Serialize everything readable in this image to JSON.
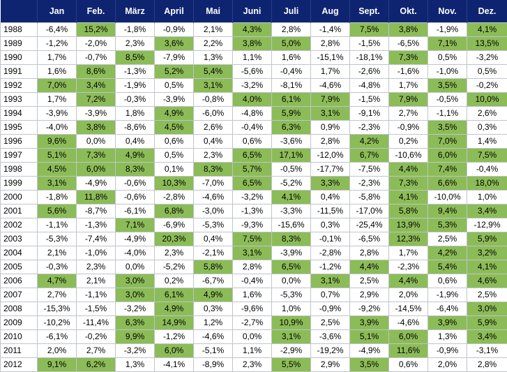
{
  "chart_data": {
    "type": "table",
    "highlight_color": "#8cbc57",
    "header_color": "#0f2471",
    "months": [
      "Jan",
      "Feb.",
      "März",
      "April",
      "Mai",
      "Juni",
      "Juli",
      "Aug",
      "Sept.",
      "Okt.",
      "Nov.",
      "Dez."
    ],
    "rows": [
      {
        "year": "1988",
        "values": [
          "-6,4%",
          "15,2%",
          "-1,8%",
          "-0,9%",
          "2,1%",
          "4,3%",
          "2,8%",
          "-1,4%",
          "7,5%",
          "3,8%",
          "-1,9%",
          "4,1%"
        ],
        "highlight": [
          0,
          1,
          0,
          0,
          0,
          1,
          0,
          0,
          1,
          1,
          0,
          1
        ]
      },
      {
        "year": "1989",
        "values": [
          "-1,2%",
          "-2,0%",
          "2,3%",
          "3,6%",
          "2,2%",
          "3,8%",
          "5,0%",
          "2,8%",
          "-1,5%",
          "-6,5%",
          "7,1%",
          "13,5%"
        ],
        "highlight": [
          0,
          0,
          0,
          1,
          0,
          1,
          1,
          0,
          0,
          0,
          1,
          1
        ]
      },
      {
        "year": "1990",
        "values": [
          "1,7%",
          "-0,7%",
          "8,5%",
          "-7,9%",
          "1,3%",
          "1,1%",
          "1,6%",
          "-15,1%",
          "-18,1%",
          "7,3%",
          "0,5%",
          "-3,2%"
        ],
        "highlight": [
          0,
          0,
          1,
          0,
          0,
          0,
          0,
          0,
          0,
          1,
          0,
          0
        ]
      },
      {
        "year": "1991",
        "values": [
          "1,6%",
          "8,6%",
          "-1,3%",
          "5,2%",
          "5,4%",
          "-5,6%",
          "-0,4%",
          "1,7%",
          "-2,6%",
          "-1,6%",
          "-1,0%",
          "0,5%"
        ],
        "highlight": [
          0,
          1,
          0,
          1,
          1,
          0,
          0,
          0,
          0,
          0,
          0,
          0
        ]
      },
      {
        "year": "1992",
        "values": [
          "7,0%",
          "3,4%",
          "-1,9%",
          "0,5%",
          "3,1%",
          "-3,2%",
          "-8,1%",
          "-4,6%",
          "-4,8%",
          "1,7%",
          "3,5%",
          "-0,2%"
        ],
        "highlight": [
          1,
          1,
          0,
          0,
          1,
          0,
          0,
          0,
          0,
          0,
          1,
          0
        ]
      },
      {
        "year": "1993",
        "values": [
          "1,7%",
          "7,2%",
          "-0,3%",
          "-3,9%",
          "-0,8%",
          "4,0%",
          "6,1%",
          "7,9%",
          "-1,5%",
          "7,9%",
          "-0,5%",
          "10,0%"
        ],
        "highlight": [
          0,
          1,
          0,
          0,
          0,
          1,
          1,
          1,
          0,
          1,
          0,
          1
        ]
      },
      {
        "year": "1994",
        "values": [
          "-3,9%",
          "-3,9%",
          "1,8%",
          "4,9%",
          "-6,0%",
          "-4,8%",
          "5,9%",
          "3,1%",
          "-9,1%",
          "2,7%",
          "-1,1%",
          "2,6%"
        ],
        "highlight": [
          0,
          0,
          0,
          1,
          0,
          0,
          1,
          1,
          0,
          0,
          0,
          0
        ]
      },
      {
        "year": "1995",
        "values": [
          "-4,0%",
          "3,8%",
          "-8,6%",
          "4,5%",
          "2,6%",
          "-0,4%",
          "6,3%",
          "0,9%",
          "-2,3%",
          "-0,9%",
          "3,5%",
          "0,3%"
        ],
        "highlight": [
          0,
          1,
          0,
          1,
          0,
          0,
          1,
          0,
          0,
          0,
          1,
          0
        ]
      },
      {
        "year": "1996",
        "values": [
          "9,6%",
          "0,0%",
          "0,4%",
          "0,6%",
          "0,4%",
          "0,6%",
          "-3,6%",
          "2,8%",
          "4,2%",
          "0,2%",
          "7,0%",
          "1,4%"
        ],
        "highlight": [
          1,
          0,
          0,
          0,
          0,
          0,
          0,
          0,
          1,
          0,
          1,
          0
        ]
      },
      {
        "year": "1997",
        "values": [
          "5,1%",
          "7,3%",
          "4,9%",
          "0,5%",
          "2,3%",
          "6,5%",
          "17,1%",
          "-12,0%",
          "6,7%",
          "-10,6%",
          "6,0%",
          "7,5%"
        ],
        "highlight": [
          1,
          1,
          1,
          0,
          0,
          1,
          1,
          0,
          1,
          0,
          1,
          1
        ]
      },
      {
        "year": "1998",
        "values": [
          "4,5%",
          "6,0%",
          "8,3%",
          "0,1%",
          "8,3%",
          "5,7%",
          "-0,5%",
          "-17,7%",
          "-7,5%",
          "4,4%",
          "7,4%",
          "-0,4%"
        ],
        "highlight": [
          1,
          1,
          1,
          0,
          1,
          1,
          0,
          0,
          0,
          1,
          1,
          0
        ]
      },
      {
        "year": "1999",
        "values": [
          "3,1%",
          "-4,9%",
          "-0,6%",
          "10,3%",
          "-7,0%",
          "6,5%",
          "-5,2%",
          "3,3%",
          "-2,3%",
          "7,3%",
          "6,6%",
          "18,0%"
        ],
        "highlight": [
          1,
          0,
          0,
          1,
          0,
          1,
          0,
          1,
          0,
          1,
          1,
          1
        ]
      },
      {
        "year": "2000",
        "values": [
          "-1,8%",
          "11,8%",
          "-0,6%",
          "-2,8%",
          "-4,6%",
          "-3,2%",
          "4,1%",
          "0,4%",
          "-5,8%",
          "4,1%",
          "-10,0%",
          "1,0%"
        ],
        "highlight": [
          0,
          1,
          0,
          0,
          0,
          0,
          1,
          0,
          0,
          1,
          0,
          0
        ]
      },
      {
        "year": "2001",
        "values": [
          "5,6%",
          "-8,7%",
          "-6,1%",
          "6,8%",
          "-3,0%",
          "-1,3%",
          "-3,3%",
          "-11,5%",
          "-17,0%",
          "5,8%",
          "9,4%",
          "3,4%"
        ],
        "highlight": [
          1,
          0,
          0,
          1,
          0,
          0,
          0,
          0,
          0,
          1,
          1,
          1
        ]
      },
      {
        "year": "2002",
        "values": [
          "-1,1%",
          "-1,3%",
          "7,1%",
          "-6,9%",
          "-5,3%",
          "-9,3%",
          "-15,6%",
          "0,3%",
          "-25,4%",
          "13,9%",
          "5,3%",
          "-12,9%"
        ],
        "highlight": [
          0,
          0,
          1,
          0,
          0,
          0,
          0,
          0,
          0,
          1,
          1,
          0
        ]
      },
      {
        "year": "2003",
        "values": [
          "-5,3%",
          "-7,4%",
          "-4,9%",
          "20,3%",
          "0,4%",
          "7,5%",
          "8,3%",
          "-0,1%",
          "-6,5%",
          "12,3%",
          "2,5%",
          "5,9%"
        ],
        "highlight": [
          0,
          0,
          0,
          1,
          0,
          1,
          1,
          0,
          0,
          1,
          0,
          1
        ]
      },
      {
        "year": "2004",
        "values": [
          "2,1%",
          "-1,0%",
          "-4,0%",
          "2,3%",
          "-2,1%",
          "3,1%",
          "-3,9%",
          "-2,8%",
          "2,8%",
          "1,7%",
          "4,2%",
          "3,2%"
        ],
        "highlight": [
          0,
          0,
          0,
          0,
          0,
          1,
          0,
          0,
          0,
          0,
          1,
          1
        ]
      },
      {
        "year": "2005",
        "values": [
          "-0,3%",
          "2,3%",
          "0,0%",
          "-5,2%",
          "5,8%",
          "2,8%",
          "6,5%",
          "-1,2%",
          "4,4%",
          "-2,3%",
          "5,4%",
          "4,1%"
        ],
        "highlight": [
          0,
          0,
          0,
          0,
          1,
          0,
          1,
          0,
          1,
          0,
          1,
          1
        ]
      },
      {
        "year": "2006",
        "values": [
          "4,7%",
          "2,1%",
          "3,0%",
          "0,2%",
          "-6,7%",
          "-0,4%",
          "0,0%",
          "3,1%",
          "2,5%",
          "4,4%",
          "0,6%",
          "4,6%"
        ],
        "highlight": [
          1,
          0,
          1,
          0,
          0,
          0,
          0,
          1,
          0,
          1,
          0,
          1
        ]
      },
      {
        "year": "2007",
        "values": [
          "2,7%",
          "-1,1%",
          "3,0%",
          "6,1%",
          "4,9%",
          "1,6%",
          "-5,3%",
          "0,7%",
          "2,9%",
          "2,0%",
          "-1,9%",
          "2,5%"
        ],
        "highlight": [
          0,
          0,
          1,
          1,
          1,
          0,
          0,
          0,
          0,
          0,
          0,
          0
        ]
      },
      {
        "year": "2008",
        "values": [
          "-15,3%",
          "-1,5%",
          "-3,2%",
          "4,9%",
          "0,3%",
          "-9,6%",
          "1,0%",
          "-0,9%",
          "-9,2%",
          "-14,5%",
          "-6,4%",
          "3,0%"
        ],
        "highlight": [
          0,
          0,
          0,
          1,
          0,
          0,
          0,
          0,
          0,
          0,
          0,
          1
        ]
      },
      {
        "year": "2009",
        "values": [
          "-10,2%",
          "-11,4%",
          "6,3%",
          "14,9%",
          "1,2%",
          "-2,7%",
          "10,9%",
          "2,5%",
          "3,9%",
          "-4,6%",
          "3,9%",
          "5,9%"
        ],
        "highlight": [
          0,
          0,
          1,
          1,
          0,
          0,
          1,
          0,
          1,
          0,
          1,
          1
        ]
      },
      {
        "year": "2010",
        "values": [
          "-6,1%",
          "-0,2%",
          "9,9%",
          "-1,2%",
          "-4,6%",
          "0,0%",
          "3,1%",
          "-3,6%",
          "5,1%",
          "6,0%",
          "1,3%",
          "3,4%"
        ],
        "highlight": [
          0,
          0,
          1,
          0,
          0,
          0,
          1,
          0,
          1,
          1,
          0,
          1
        ]
      },
      {
        "year": "2011",
        "values": [
          "2,0%",
          "2,7%",
          "-3,2%",
          "6,0%",
          "-5,1%",
          "1,1%",
          "-2,9%",
          "-19,2%",
          "-4,9%",
          "11,6%",
          "-0,9%",
          "-3,1%"
        ],
        "highlight": [
          0,
          0,
          0,
          1,
          0,
          0,
          0,
          0,
          0,
          1,
          0,
          0
        ]
      },
      {
        "year": "2012",
        "values": [
          "9,1%",
          "6,2%",
          "1,3%",
          "-4,1%",
          "-8,9%",
          "2,3%",
          "5,5%",
          "2,9%",
          "3,5%",
          "0,6%",
          "2,0%",
          "2,8%"
        ],
        "highlight": [
          1,
          1,
          0,
          0,
          0,
          0,
          1,
          0,
          1,
          0,
          0,
          0
        ]
      }
    ]
  }
}
